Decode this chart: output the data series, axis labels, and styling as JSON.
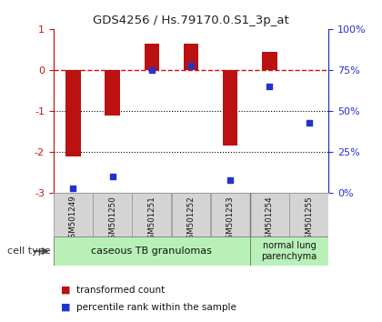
{
  "title": "GDS4256 / Hs.79170.0.S1_3p_at",
  "samples": [
    "GSM501249",
    "GSM501250",
    "GSM501251",
    "GSM501252",
    "GSM501253",
    "GSM501254",
    "GSM501255"
  ],
  "transformed_count": [
    -2.1,
    -1.1,
    0.65,
    0.65,
    -1.85,
    0.45,
    0.0
  ],
  "percentile_rank": [
    3,
    10,
    75,
    78,
    8,
    65,
    43
  ],
  "ylim_left": [
    -3,
    1
  ],
  "bar_color": "#BB1111",
  "dot_color": "#2233CC",
  "dashed_line_color": "#CC1111",
  "dotted_line_color": "#000000",
  "cell_type_1": "caseous TB granulomas",
  "cell_type_2": "normal lung\nparenchyma",
  "legend_bar_label": "transformed count",
  "legend_dot_label": "percentile rank within the sample",
  "cell_type_label": "cell type",
  "bg_color": "#ffffff",
  "cell_type_bg": "#b8f0b8",
  "sample_box_color": "#d4d4d4",
  "sample_box_edge": "#999999"
}
